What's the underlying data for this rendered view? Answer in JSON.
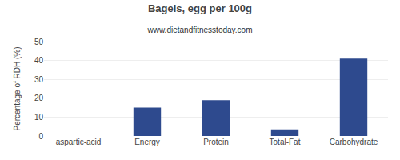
{
  "chart_data": {
    "type": "bar",
    "title": "Bagels, egg per 100g",
    "subtitle": "www.dietandfitnesstoday.com",
    "categories": [
      "aspartic-acid",
      "Energy",
      "Protein",
      "Total-Fat",
      "Carbohydrate"
    ],
    "values": [
      0,
      15,
      19,
      3.5,
      41
    ],
    "color": "#2e4a8e",
    "ylabel": "Percentage of RDH (%)",
    "ylim": [
      0,
      50
    ],
    "yticks": [
      0,
      10,
      20,
      30,
      40,
      50
    ],
    "grid": true
  }
}
